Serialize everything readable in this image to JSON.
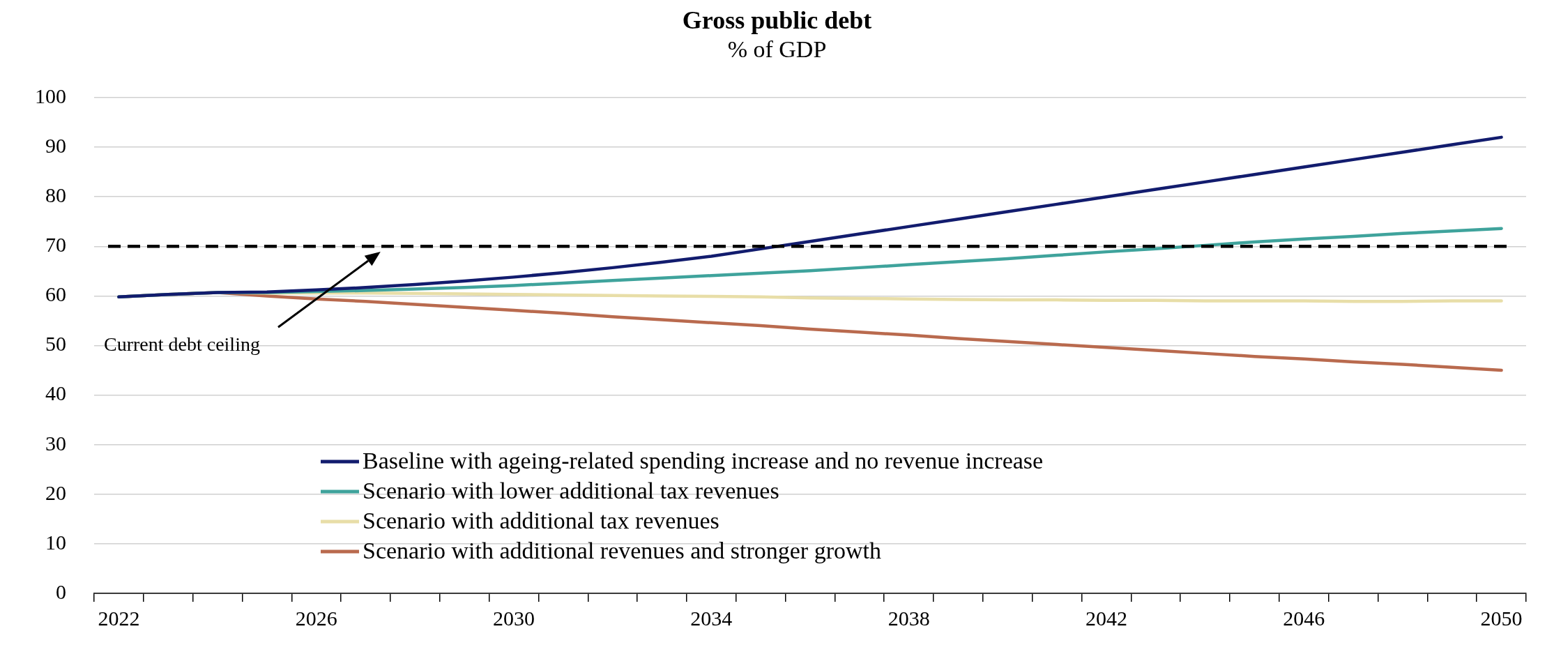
{
  "chart_data": {
    "type": "line",
    "title": "Gross public debt",
    "subtitle": "% of GDP",
    "categories": [
      "2022",
      null,
      null,
      null,
      "2026",
      null,
      null,
      null,
      "2030",
      null,
      null,
      null,
      "2034",
      null,
      null,
      null,
      "2038",
      null,
      null,
      null,
      "2042",
      null,
      null,
      null,
      "2046",
      null,
      null,
      null,
      "2050"
    ],
    "series": [
      {
        "name": "Baseline with ageing-related spending increase and no revenue increase",
        "color": "#121c6e",
        "values": [
          59.8,
          60.3,
          60.7,
          60.8,
          61.2,
          61.7,
          62.3,
          63,
          63.8,
          64.7,
          65.7,
          66.8,
          68,
          69.5,
          71,
          72.5,
          74,
          75.5,
          77,
          78.5,
          80,
          81.5,
          83,
          84.5,
          86,
          87.5,
          89,
          90.5,
          92
        ]
      },
      {
        "name": "Scenario with lower additional tax revenues",
        "color": "#3fa39c",
        "values": [
          59.8,
          60.3,
          60.7,
          60.7,
          60.9,
          61.1,
          61.4,
          61.7,
          62.1,
          62.6,
          63.1,
          63.6,
          64.1,
          64.6,
          65.1,
          65.7,
          66.3,
          66.9,
          67.5,
          68.2,
          68.9,
          69.5,
          70.2,
          70.9,
          71.5,
          72,
          72.6,
          73.1,
          73.6
        ]
      },
      {
        "name": "Scenario with additional tax revenues",
        "color": "#e8dea8",
        "values": [
          59.8,
          60.3,
          60.7,
          60.6,
          60.6,
          60.6,
          60.5,
          60.4,
          60.3,
          60.2,
          60.1,
          60,
          59.9,
          59.8,
          59.6,
          59.5,
          59.4,
          59.3,
          59.2,
          59.2,
          59.1,
          59.1,
          59,
          59,
          59,
          58.9,
          58.9,
          59,
          59
        ]
      },
      {
        "name": "Scenario with additional revenues and stronger growth",
        "color": "#b96a4e",
        "values": [
          59.8,
          60.3,
          60.7,
          60,
          59.4,
          58.9,
          58.3,
          57.7,
          57.1,
          56.5,
          55.8,
          55.2,
          54.6,
          54,
          53.3,
          52.7,
          52.1,
          51.4,
          50.8,
          50.2,
          49.6,
          49,
          48.4,
          47.8,
          47.3,
          46.7,
          46.2,
          45.6,
          45
        ]
      }
    ],
    "ylim": [
      0,
      100
    ],
    "yticks": [
      0,
      10,
      20,
      30,
      40,
      50,
      60,
      70,
      80,
      90,
      100
    ],
    "ref_lines": [
      {
        "axis": "y",
        "value": 70,
        "color": "#000000",
        "line_style": "dashed"
      }
    ],
    "annotations": [
      "Current debt ceiling"
    ],
    "grid": "y",
    "legend": "bottom",
    "marker": "none",
    "line_style": "solid"
  }
}
